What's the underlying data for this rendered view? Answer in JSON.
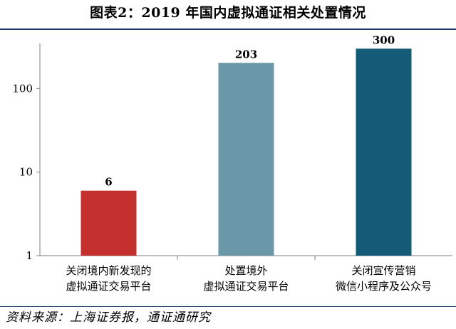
{
  "chart_data": {
    "type": "bar",
    "title": "图表2：2019 年国内虚拟通证相关处置情况",
    "categories": [
      [
        "关闭境内新发现的",
        "虚拟通证交易平台"
      ],
      [
        "处置境外",
        "虚拟通证交易平台"
      ],
      [
        "关闭宣传营销",
        "微信小程序及公众号"
      ]
    ],
    "values": [
      6,
      203,
      300
    ],
    "data_labels": [
      "6",
      "203",
      "300"
    ],
    "colors": [
      "#c4302e",
      "#6b98a8",
      "#145b77"
    ],
    "yscale": "log",
    "ylim": [
      1,
      1000
    ],
    "yticks": [
      1,
      10,
      100
    ],
    "ytick_labels": [
      "1",
      "10",
      "100"
    ],
    "xlabel": "",
    "ylabel": "",
    "grid": false,
    "legend": "none"
  },
  "source": "资料来源：上海证券报，通证通研究"
}
